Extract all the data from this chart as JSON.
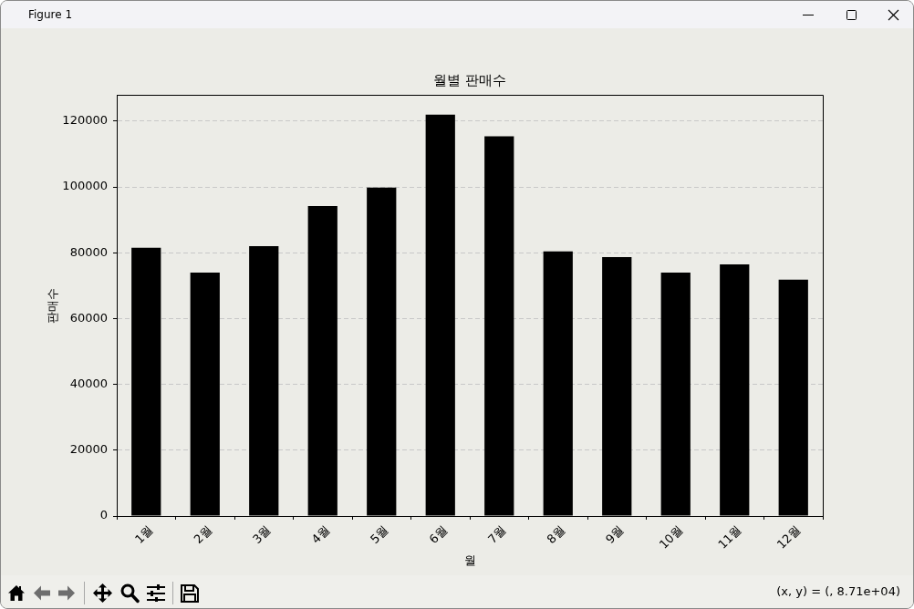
{
  "chart_data": {
    "type": "bar",
    "title": "월별 판매수",
    "xlabel": "월",
    "ylabel": "판매수",
    "categories": [
      "1월",
      "2월",
      "3월",
      "4월",
      "5월",
      "6월",
      "7월",
      "8월",
      "9월",
      "10월",
      "11월",
      "12월"
    ],
    "values": [
      81500,
      74000,
      82000,
      94200,
      99800,
      122000,
      115400,
      80400,
      78700,
      74000,
      76500,
      71800
    ],
    "color": "#000000",
    "ylim": [
      0,
      128000
    ],
    "yticks": [
      0,
      20000,
      40000,
      60000,
      80000,
      100000,
      120000
    ],
    "grid": "y",
    "annotations": [
      "Figure 1",
      "(x, y) = (, 8.71e+04)"
    ]
  }
}
